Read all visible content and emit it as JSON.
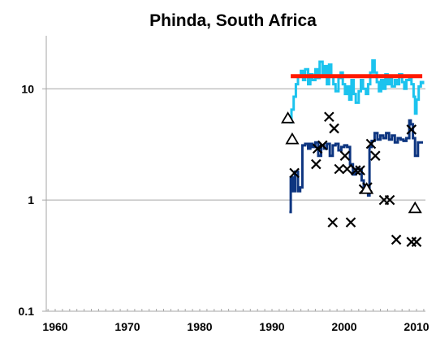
{
  "chart_data": {
    "type": "line",
    "title": "Phinda, South Africa",
    "xlabel": "",
    "ylabel": "",
    "x_scale": "linear",
    "y_scale": "log",
    "xlim": [
      1960,
      2012
    ],
    "ylim": [
      0.1,
      30
    ],
    "x_ticks": [
      "1960",
      "1970",
      "1980",
      "1990",
      "2000",
      "2010"
    ],
    "y_ticks": [
      "0.1",
      "1",
      "10"
    ],
    "grid": "horizontal major gridlines at 1 and 10",
    "legend": "none",
    "series": [
      {
        "style": "step-line",
        "color": "#1cc3ee",
        "points": [
          [
            1992.4,
            5.0
          ],
          [
            1992.7,
            6.5
          ],
          [
            1993.0,
            8.5
          ],
          [
            1993.3,
            11.0
          ],
          [
            1993.6,
            13.0
          ],
          [
            1994.0,
            14.5
          ],
          [
            1994.3,
            12.0
          ],
          [
            1994.6,
            15.0
          ],
          [
            1995.0,
            11.0
          ],
          [
            1995.3,
            13.5
          ],
          [
            1995.6,
            12.0
          ],
          [
            1996.0,
            15.0
          ],
          [
            1996.3,
            12.5
          ],
          [
            1996.6,
            17.5
          ],
          [
            1997.0,
            13.0
          ],
          [
            1997.3,
            16.0
          ],
          [
            1997.6,
            11.0
          ],
          [
            1997.9,
            16.5
          ],
          [
            1998.2,
            13.0
          ],
          [
            1998.5,
            11.0
          ],
          [
            1998.8,
            9.5
          ],
          [
            1999.2,
            12.5
          ],
          [
            1999.5,
            14.0
          ],
          [
            1999.8,
            11.0
          ],
          [
            2000.1,
            9.0
          ],
          [
            2000.4,
            10.5
          ],
          [
            2000.7,
            8.0
          ],
          [
            2001.0,
            12.0
          ],
          [
            2001.3,
            9.0
          ],
          [
            2001.6,
            7.5
          ],
          [
            2002.0,
            9.5
          ],
          [
            2002.3,
            12.0
          ],
          [
            2002.6,
            10.0
          ],
          [
            2003.0,
            9.0
          ],
          [
            2003.3,
            11.0
          ],
          [
            2003.6,
            14.0
          ],
          [
            2003.9,
            18.0
          ],
          [
            2004.2,
            14.0
          ],
          [
            2004.5,
            11.5
          ],
          [
            2004.8,
            9.5
          ],
          [
            2005.1,
            12.0
          ],
          [
            2005.4,
            10.0
          ],
          [
            2005.7,
            13.5
          ],
          [
            2006.0,
            11.0
          ],
          [
            2006.3,
            13.0
          ],
          [
            2006.6,
            10.5
          ],
          [
            2007.0,
            12.0
          ],
          [
            2007.3,
            11.0
          ],
          [
            2007.6,
            13.5
          ],
          [
            2008.0,
            11.5
          ],
          [
            2008.3,
            10.0
          ],
          [
            2008.6,
            12.0
          ],
          [
            2009.0,
            13.0
          ],
          [
            2009.3,
            11.0
          ],
          [
            2009.6,
            8.5
          ],
          [
            2009.8,
            6.0
          ],
          [
            2010.0,
            8.0
          ],
          [
            2010.3,
            10.5
          ],
          [
            2010.6,
            11.5
          ],
          [
            2010.9,
            11.0
          ]
        ]
      },
      {
        "style": "line",
        "color": "#ff1a00",
        "points": [
          [
            1992.6,
            13.0
          ],
          [
            2010.8,
            13.0
          ]
        ]
      },
      {
        "style": "step-line",
        "color": "#0d3580",
        "points": [
          [
            1992.4,
            0.78
          ],
          [
            1992.6,
            1.6
          ],
          [
            1992.9,
            1.2
          ],
          [
            1993.2,
            1.8
          ],
          [
            1993.6,
            1.2
          ],
          [
            1993.9,
            1.3
          ],
          [
            1994.2,
            3.1
          ],
          [
            1994.6,
            3.2
          ],
          [
            1995.0,
            2.9
          ],
          [
            1995.3,
            3.2
          ],
          [
            1995.6,
            3.0
          ],
          [
            1996.0,
            3.3
          ],
          [
            1996.4,
            2.5
          ],
          [
            1996.8,
            3.1
          ],
          [
            1997.2,
            2.9
          ],
          [
            1997.6,
            3.2
          ],
          [
            1998.0,
            2.5
          ],
          [
            1998.4,
            3.1
          ],
          [
            1998.8,
            3.2
          ],
          [
            1999.2,
            2.8
          ],
          [
            1999.6,
            3.0
          ],
          [
            2000.0,
            3.1
          ],
          [
            2000.4,
            3.0
          ],
          [
            2000.8,
            2.1
          ],
          [
            2001.2,
            1.7
          ],
          [
            2001.6,
            1.9
          ],
          [
            2002.0,
            1.9
          ],
          [
            2002.4,
            1.5
          ],
          [
            2002.7,
            1.3
          ],
          [
            2003.0,
            1.2
          ],
          [
            2003.3,
            1.1
          ],
          [
            2003.5,
            3.0
          ],
          [
            2003.8,
            3.4
          ],
          [
            2004.2,
            4.0
          ],
          [
            2004.6,
            3.5
          ],
          [
            2005.0,
            3.8
          ],
          [
            2005.4,
            3.6
          ],
          [
            2005.8,
            4.0
          ],
          [
            2006.2,
            3.5
          ],
          [
            2006.6,
            3.8
          ],
          [
            2007.0,
            3.3
          ],
          [
            2007.4,
            3.6
          ],
          [
            2007.8,
            3.5
          ],
          [
            2008.2,
            3.4
          ],
          [
            2008.6,
            3.6
          ],
          [
            2009.0,
            5.2
          ],
          [
            2009.2,
            4.8
          ],
          [
            2009.5,
            3.6
          ],
          [
            2009.8,
            2.5
          ],
          [
            2010.2,
            3.3
          ],
          [
            2010.9,
            3.3
          ]
        ]
      },
      {
        "style": "markers",
        "marker": "x",
        "color": "#000000",
        "points": [
          [
            1993.1,
            1.75
          ],
          [
            1996.1,
            2.1
          ],
          [
            1996.3,
            2.9
          ],
          [
            1997.0,
            3.1
          ],
          [
            1997.9,
            5.6
          ],
          [
            1998.4,
            0.63
          ],
          [
            1998.6,
            4.4
          ],
          [
            1999.3,
            1.9
          ],
          [
            2000.1,
            2.5
          ],
          [
            2000.4,
            1.9
          ],
          [
            2000.9,
            0.63
          ],
          [
            2001.6,
            1.85
          ],
          [
            2002.2,
            1.85
          ],
          [
            2002.7,
            1.25
          ],
          [
            2003.2,
            1.3
          ],
          [
            2003.7,
            3.2
          ],
          [
            2004.3,
            2.5
          ],
          [
            2005.5,
            1.0
          ],
          [
            2006.3,
            1.0
          ],
          [
            2007.2,
            0.44
          ],
          [
            2009.3,
            4.3
          ],
          [
            2009.3,
            0.42
          ],
          [
            2010.0,
            0.42
          ]
        ]
      },
      {
        "style": "markers",
        "marker": "triangle",
        "color": "#000000",
        "points": [
          [
            1992.2,
            5.4
          ],
          [
            1992.8,
            3.5
          ],
          [
            2003.1,
            1.25
          ],
          [
            2009.8,
            0.84
          ]
        ]
      }
    ],
    "colors": {
      "axis": "#a6a6a6",
      "grid": "#a6a6a6",
      "cyan_series": "#1cc3ee",
      "red_line": "#ff1a00",
      "navy_series": "#0d3580",
      "markers": "#000000"
    }
  }
}
